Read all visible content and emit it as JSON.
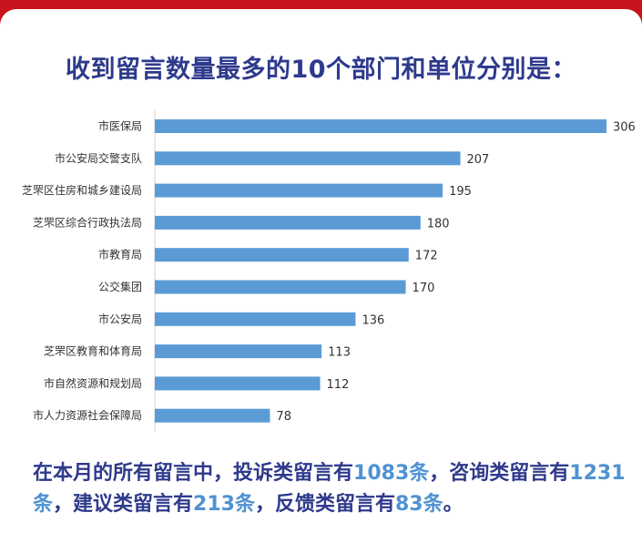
{
  "title": "收到留言数量最多的10个部门和单位分别是：",
  "summary": {
    "p1": "在本月的所有留言中，投诉类留言有",
    "v1": "1083条",
    "p2": "，咨询类留言有",
    "v2": "1231条",
    "p3": "，建议类留言有",
    "v3": "213条",
    "p4": "，反馈类留言有",
    "v4": "83条",
    "p5": "。"
  },
  "colors": {
    "bar": "#5b9bd5",
    "title": "#2e3a8c",
    "highlight": "#4f92d2",
    "frame": "#c8141c"
  },
  "chart_data": {
    "type": "bar",
    "orientation": "horizontal",
    "categories": [
      "市医保局",
      "市公安局交警支队",
      "芝罘区住房和城乡建设局",
      "芝罘区综合行政执法局",
      "市教育局",
      "公交集团",
      "市公安局",
      "芝罘区教育和体育局",
      "市自然资源和规划局",
      "市人力资源社会保障局"
    ],
    "values": [
      306,
      207,
      195,
      180,
      172,
      170,
      136,
      113,
      112,
      78
    ],
    "xlim": [
      0,
      306
    ],
    "grid": false,
    "legend": "none"
  }
}
